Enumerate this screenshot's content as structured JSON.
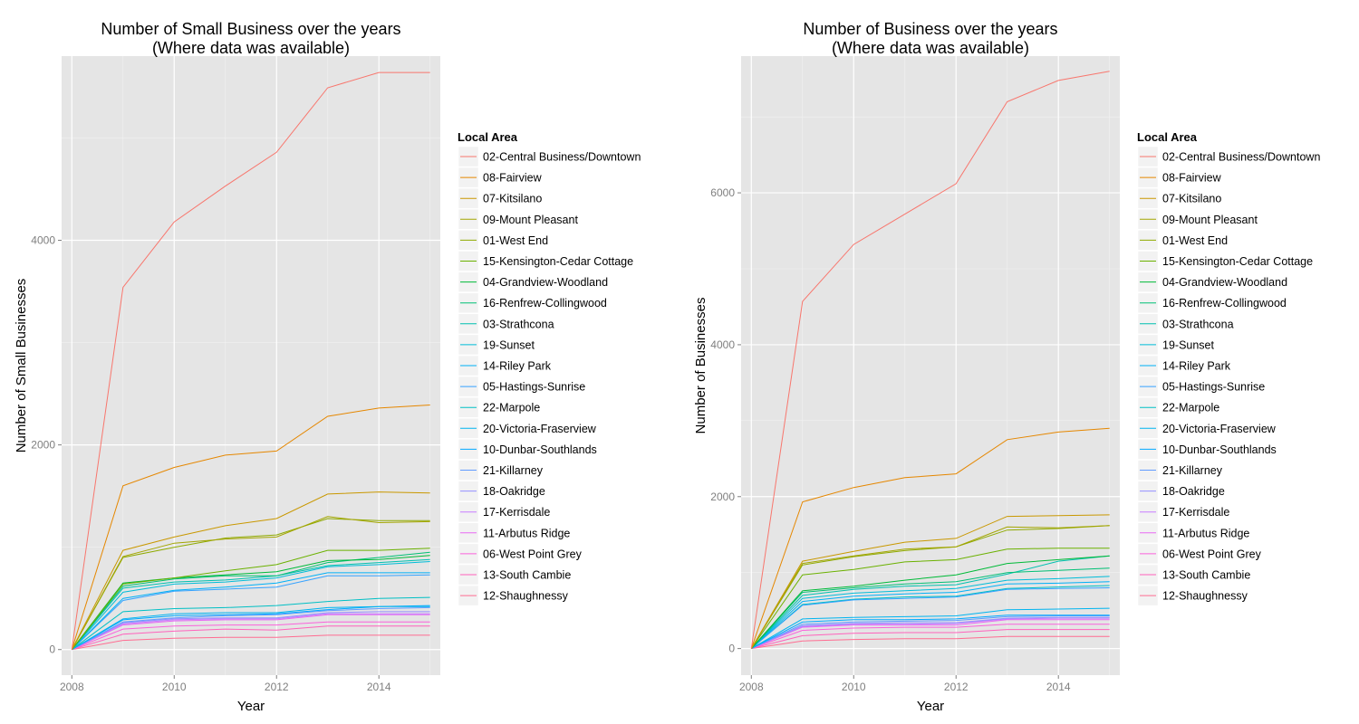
{
  "chart_data": [
    {
      "type": "line",
      "title": [
        "Number of Small Business over the years",
        "(Where data was available)"
      ],
      "xlabel": "Year",
      "ylabel": "Number of Small Businesses",
      "x": [
        2008,
        2009,
        2010,
        2011,
        2012,
        2013,
        2014,
        2015
      ],
      "xlim": [
        2007.8,
        2015.2
      ],
      "ylim": [
        -250,
        5800
      ],
      "xticks": [
        2008,
        2010,
        2012,
        2014
      ],
      "yticks": [
        0,
        2000,
        4000
      ],
      "grid": true,
      "legend": {
        "title": "Local Area",
        "placement": "right"
      },
      "series": [
        {
          "name": "02-Central Business/Downtown",
          "color": "#F8766D",
          "values": [
            0,
            3540,
            4180,
            4530,
            4860,
            5490,
            5640,
            5640
          ]
        },
        {
          "name": "08-Fairview",
          "color": "#E58700",
          "values": [
            0,
            1600,
            1780,
            1900,
            1940,
            2280,
            2360,
            2390
          ]
        },
        {
          "name": "07-Kitsilano",
          "color": "#C99800",
          "values": [
            0,
            970,
            1100,
            1210,
            1280,
            1520,
            1540,
            1530
          ]
        },
        {
          "name": "09-Mount Pleasant",
          "color": "#A3A500",
          "values": [
            0,
            910,
            1040,
            1080,
            1100,
            1300,
            1240,
            1250
          ]
        },
        {
          "name": "01-West End",
          "color": "#8FAA00",
          "values": [
            0,
            900,
            1000,
            1090,
            1120,
            1280,
            1260,
            1260
          ]
        },
        {
          "name": "15-Kensington-Cedar Cottage",
          "color": "#6BB100",
          "values": [
            0,
            640,
            700,
            770,
            830,
            970,
            970,
            990
          ]
        },
        {
          "name": "04-Grandview-Woodland",
          "color": "#00BA38",
          "values": [
            0,
            650,
            700,
            730,
            760,
            870,
            880,
            920
          ]
        },
        {
          "name": "16-Renfrew-Collingwood",
          "color": "#00BF74",
          "values": [
            0,
            620,
            690,
            720,
            720,
            850,
            900,
            950
          ]
        },
        {
          "name": "03-Strathcona",
          "color": "#00C0AF",
          "values": [
            0,
            600,
            660,
            680,
            720,
            820,
            850,
            880
          ]
        },
        {
          "name": "19-Sunset",
          "color": "#00BCD8",
          "values": [
            0,
            560,
            640,
            660,
            700,
            810,
            830,
            860
          ]
        },
        {
          "name": "14-Riley Park",
          "color": "#00B0F6",
          "values": [
            0,
            500,
            580,
            610,
            650,
            750,
            750,
            750
          ]
        },
        {
          "name": "05-Hastings-Sunrise",
          "color": "#35A2FF",
          "values": [
            0,
            480,
            570,
            590,
            610,
            720,
            720,
            730
          ]
        },
        {
          "name": "22-Marpole",
          "color": "#00BFC4",
          "values": [
            0,
            370,
            400,
            410,
            430,
            470,
            500,
            510
          ]
        },
        {
          "name": "20-Victoria-Fraserview",
          "color": "#00B4EF",
          "values": [
            0,
            300,
            350,
            360,
            360,
            410,
            420,
            420
          ]
        },
        {
          "name": "10-Dunbar-Southlands",
          "color": "#00A9FF",
          "values": [
            0,
            290,
            330,
            340,
            350,
            390,
            420,
            430
          ]
        },
        {
          "name": "21-Killarney",
          "color": "#619CFF",
          "values": [
            0,
            270,
            310,
            330,
            340,
            380,
            400,
            410
          ]
        },
        {
          "name": "18-Oakridge",
          "color": "#9590FF",
          "values": [
            0,
            260,
            300,
            310,
            310,
            360,
            370,
            370
          ]
        },
        {
          "name": "17-Kerrisdale",
          "color": "#C77CFF",
          "values": [
            0,
            250,
            290,
            300,
            300,
            350,
            350,
            350
          ]
        },
        {
          "name": "11-Arbutus Ridge",
          "color": "#E76BF3",
          "values": [
            0,
            240,
            280,
            290,
            290,
            340,
            340,
            340
          ]
        },
        {
          "name": "06-West Point Grey",
          "color": "#FA62DB",
          "values": [
            0,
            200,
            230,
            240,
            240,
            270,
            270,
            270
          ]
        },
        {
          "name": "13-South Cambie",
          "color": "#FF62BC",
          "values": [
            0,
            150,
            180,
            200,
            190,
            230,
            230,
            230
          ]
        },
        {
          "name": "12-Shaughnessy",
          "color": "#FF6C91",
          "values": [
            0,
            90,
            110,
            120,
            120,
            140,
            140,
            140
          ]
        }
      ]
    },
    {
      "type": "line",
      "title": [
        "Number of Business over the years",
        "(Where data was available)"
      ],
      "xlabel": "Year",
      "ylabel": "Number of Businesses",
      "x": [
        2008,
        2009,
        2010,
        2011,
        2012,
        2013,
        2014,
        2015
      ],
      "xlim": [
        2007.8,
        2015.2
      ],
      "ylim": [
        -350,
        7800
      ],
      "xticks": [
        2008,
        2010,
        2012,
        2014
      ],
      "yticks": [
        0,
        2000,
        4000,
        6000
      ],
      "grid": true,
      "legend": {
        "title": "Local Area",
        "placement": "right"
      },
      "series": [
        {
          "name": "02-Central Business/Downtown",
          "color": "#F8766D",
          "values": [
            0,
            4570,
            5320,
            5720,
            6120,
            7200,
            7480,
            7600
          ]
        },
        {
          "name": "08-Fairview",
          "color": "#E58700",
          "values": [
            0,
            1930,
            2120,
            2250,
            2300,
            2750,
            2850,
            2900
          ]
        },
        {
          "name": "07-Kitsilano",
          "color": "#C99800",
          "values": [
            0,
            1150,
            1280,
            1400,
            1450,
            1740,
            1750,
            1760
          ]
        },
        {
          "name": "09-Mount Pleasant",
          "color": "#A3A500",
          "values": [
            0,
            1120,
            1220,
            1310,
            1340,
            1600,
            1590,
            1620
          ]
        },
        {
          "name": "01-West End",
          "color": "#8FAA00",
          "values": [
            0,
            1100,
            1210,
            1290,
            1340,
            1560,
            1580,
            1620
          ]
        },
        {
          "name": "15-Kensington-Cedar Cottage",
          "color": "#6BB100",
          "values": [
            0,
            970,
            1040,
            1140,
            1170,
            1310,
            1320,
            1320
          ]
        },
        {
          "name": "04-Grandview-Woodland",
          "color": "#00BA38",
          "values": [
            0,
            760,
            820,
            900,
            970,
            1120,
            1170,
            1220
          ]
        },
        {
          "name": "16-Renfrew-Collingwood",
          "color": "#00BF74",
          "values": [
            0,
            740,
            800,
            850,
            880,
            1000,
            1030,
            1060
          ]
        },
        {
          "name": "03-Strathcona",
          "color": "#00C0AF",
          "values": [
            0,
            700,
            780,
            820,
            840,
            980,
            1150,
            1220
          ]
        },
        {
          "name": "19-Sunset",
          "color": "#00BCD8",
          "values": [
            0,
            660,
            730,
            760,
            790,
            900,
            920,
            950
          ]
        },
        {
          "name": "14-Riley Park",
          "color": "#00B0F6",
          "values": [
            0,
            620,
            690,
            720,
            740,
            850,
            860,
            880
          ]
        },
        {
          "name": "05-Hastings-Sunrise",
          "color": "#35A2FF",
          "values": [
            0,
            570,
            640,
            660,
            680,
            780,
            790,
            800
          ]
        },
        {
          "name": "22-Marpole",
          "color": "#00BFC4",
          "values": [
            0,
            580,
            650,
            680,
            690,
            790,
            810,
            830
          ]
        },
        {
          "name": "20-Victoria-Fraserview",
          "color": "#00B4EF",
          "values": [
            0,
            390,
            410,
            420,
            430,
            510,
            520,
            530
          ]
        },
        {
          "name": "10-Dunbar-Southlands",
          "color": "#00A9FF",
          "values": [
            0,
            350,
            380,
            380,
            390,
            440,
            440,
            440
          ]
        },
        {
          "name": "21-Killarney",
          "color": "#619CFF",
          "values": [
            0,
            320,
            350,
            360,
            370,
            420,
            430,
            430
          ]
        },
        {
          "name": "18-Oakridge",
          "color": "#9590FF",
          "values": [
            0,
            300,
            330,
            340,
            340,
            400,
            410,
            410
          ]
        },
        {
          "name": "17-Kerrisdale",
          "color": "#C77CFF",
          "values": [
            0,
            290,
            320,
            320,
            330,
            390,
            400,
            400
          ]
        },
        {
          "name": "11-Arbutus Ridge",
          "color": "#E76BF3",
          "values": [
            0,
            280,
            310,
            310,
            310,
            380,
            380,
            380
          ]
        },
        {
          "name": "06-West Point Grey",
          "color": "#FA62DB",
          "values": [
            0,
            240,
            270,
            280,
            280,
            320,
            320,
            320
          ]
        },
        {
          "name": "13-South Cambie",
          "color": "#FF62BC",
          "values": [
            0,
            170,
            200,
            210,
            210,
            250,
            250,
            250
          ]
        },
        {
          "name": "12-Shaughnessy",
          "color": "#FF6C91",
          "values": [
            0,
            100,
            120,
            130,
            130,
            160,
            160,
            160
          ]
        }
      ]
    }
  ]
}
